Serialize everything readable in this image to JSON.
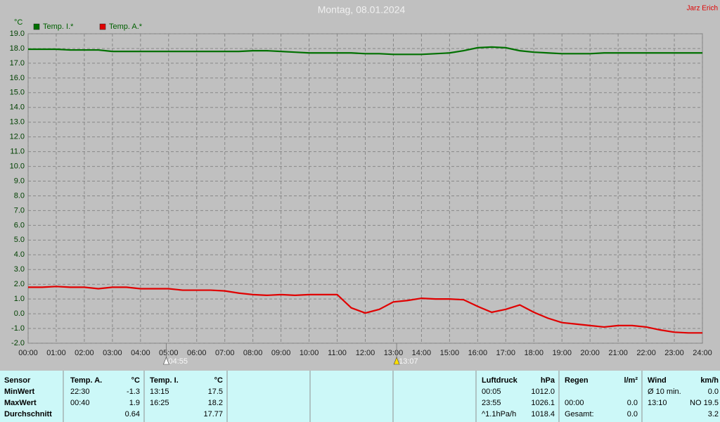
{
  "chart_data": {
    "type": "line",
    "title": "Montag, 08.01.2024",
    "author": "Jarz Erich",
    "y_label": "°C",
    "x": [
      0,
      0.5,
      1,
      1.5,
      2,
      2.5,
      3,
      3.5,
      4,
      4.5,
      5,
      5.5,
      6,
      6.5,
      7,
      7.5,
      8,
      8.5,
      9,
      9.5,
      10,
      10.5,
      11,
      11.5,
      12,
      12.5,
      13,
      13.5,
      14,
      14.5,
      15,
      15.5,
      16,
      16.5,
      17,
      17.5,
      18,
      18.5,
      19,
      19.5,
      20,
      20.5,
      21,
      21.5,
      22,
      22.5,
      23,
      23.5,
      24
    ],
    "series": [
      {
        "name": "Temp. I.*",
        "color": "#007000",
        "values": [
          17.95,
          17.95,
          17.95,
          17.9,
          17.9,
          17.9,
          17.8,
          17.8,
          17.8,
          17.8,
          17.8,
          17.8,
          17.8,
          17.8,
          17.8,
          17.8,
          17.85,
          17.85,
          17.8,
          17.75,
          17.7,
          17.7,
          17.7,
          17.7,
          17.65,
          17.65,
          17.6,
          17.6,
          17.6,
          17.65,
          17.7,
          17.85,
          18.05,
          18.1,
          18.05,
          17.85,
          17.75,
          17.7,
          17.65,
          17.65,
          17.65,
          17.7,
          17.7,
          17.7,
          17.7,
          17.7,
          17.7,
          17.7,
          17.7
        ]
      },
      {
        "name": "Temp. A.*",
        "color": "#e00000",
        "values": [
          1.8,
          1.8,
          1.85,
          1.8,
          1.8,
          1.7,
          1.8,
          1.8,
          1.7,
          1.7,
          1.7,
          1.6,
          1.6,
          1.6,
          1.55,
          1.4,
          1.3,
          1.25,
          1.3,
          1.25,
          1.3,
          1.3,
          1.3,
          0.4,
          0.05,
          0.3,
          0.8,
          0.9,
          1.05,
          1.0,
          1.0,
          0.95,
          0.5,
          0.1,
          0.3,
          0.6,
          0.1,
          -0.3,
          -0.6,
          -0.7,
          -0.8,
          -0.9,
          -0.8,
          -0.8,
          -0.9,
          -1.1,
          -1.25,
          -1.3,
          -1.3
        ]
      }
    ],
    "xlim": [
      0,
      24
    ],
    "xticks": [
      {
        "value": 0,
        "label": "00:00"
      },
      {
        "value": 1,
        "label": "01:00"
      },
      {
        "value": 2,
        "label": "02:00"
      },
      {
        "value": 3,
        "label": "03:00"
      },
      {
        "value": 4,
        "label": "04:00"
      },
      {
        "value": 5,
        "label": "05:00"
      },
      {
        "value": 6,
        "label": "06:00"
      },
      {
        "value": 7,
        "label": "07:00"
      },
      {
        "value": 8,
        "label": "08:00"
      },
      {
        "value": 9,
        "label": "09:00"
      },
      {
        "value": 10,
        "label": "10:00"
      },
      {
        "value": 11,
        "label": "11:00"
      },
      {
        "value": 12,
        "label": "12:00"
      },
      {
        "value": 13,
        "label": "13:00"
      },
      {
        "value": 14,
        "label": "14:00"
      },
      {
        "value": 15,
        "label": "15:00"
      },
      {
        "value": 16,
        "label": "16:00"
      },
      {
        "value": 17,
        "label": "17:00"
      },
      {
        "value": 18,
        "label": "18:00"
      },
      {
        "value": 19,
        "label": "19:00"
      },
      {
        "value": 20,
        "label": "20:00"
      },
      {
        "value": 21,
        "label": "21:00"
      },
      {
        "value": 22,
        "label": "22:00"
      },
      {
        "value": 23,
        "label": "23:00"
      },
      {
        "value": 24,
        "label": "24:00"
      }
    ],
    "ylim": [
      -2,
      19
    ],
    "yticks": [
      {
        "value": -2,
        "label": "-2.0"
      },
      {
        "value": -1,
        "label": "-1.0"
      },
      {
        "value": 0,
        "label": "0.0"
      },
      {
        "value": 1,
        "label": "1.0"
      },
      {
        "value": 2,
        "label": "2.0"
      },
      {
        "value": 3,
        "label": "3.0"
      },
      {
        "value": 4,
        "label": "4.0"
      },
      {
        "value": 5,
        "label": "5.0"
      },
      {
        "value": 6,
        "label": "6.0"
      },
      {
        "value": 7,
        "label": "7.0"
      },
      {
        "value": 8,
        "label": "8.0"
      },
      {
        "value": 9,
        "label": "9.0"
      },
      {
        "value": 10,
        "label": "10.0"
      },
      {
        "value": 11,
        "label": "11.0"
      },
      {
        "value": 12,
        "label": "12.0"
      },
      {
        "value": 13,
        "label": "13.0"
      },
      {
        "value": 14,
        "label": "14.0"
      },
      {
        "value": 15,
        "label": "15.0"
      },
      {
        "value": 16,
        "label": "16.0"
      },
      {
        "value": 17,
        "label": "17.0"
      },
      {
        "value": 18,
        "label": "18.0"
      },
      {
        "value": 19,
        "label": "19.0"
      }
    ],
    "grid": true,
    "annotations": [
      {
        "x": 4.9167,
        "label": "04:55"
      },
      {
        "x": 13.1167,
        "label": "13:07"
      }
    ]
  },
  "table": {
    "rows": [
      [
        "Sensor",
        "Temp. A.",
        "°C",
        "Temp. I.",
        "°C",
        "Luftdruck",
        "hPa",
        "Regen",
        "l/m²",
        "Wind",
        "km/h"
      ],
      [
        "MinWert",
        "22:30",
        "-1.3",
        "13:15",
        "17.5",
        "00:05",
        "1012.0",
        null,
        null,
        "Ø 10 min.",
        "0.0"
      ],
      [
        "MaxWert",
        "00:40",
        "1.9",
        "16:25",
        "18.2",
        "23:55",
        "1026.1",
        "00:00",
        "0.0",
        "13:10",
        "NO 19.5"
      ],
      [
        "Durchschnitt",
        null,
        "0.64",
        null,
        "17.77",
        "^1.1hPa/h",
        "1018.4",
        "Gesamt:",
        "0.0",
        null,
        "3.2"
      ]
    ]
  }
}
